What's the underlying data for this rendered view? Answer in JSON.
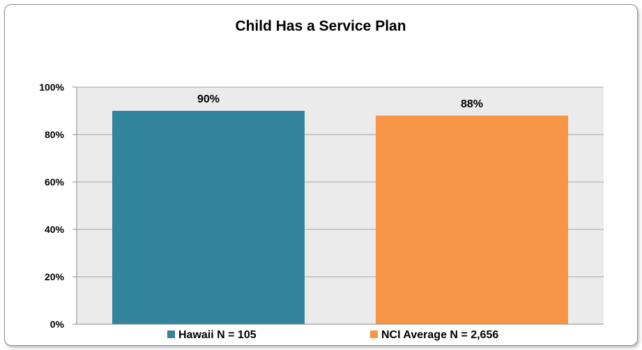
{
  "chart_data": {
    "type": "bar",
    "title": "Child Has a Service Plan",
    "categories": [
      "Hawaii N = 105",
      "NCI Average N = 2,656"
    ],
    "values": [
      90,
      88
    ],
    "data_labels": [
      "90%",
      "88%"
    ],
    "colors": [
      "#31849b",
      "#f79646"
    ],
    "ylim": [
      0,
      100
    ],
    "yticks": [
      0,
      20,
      40,
      60,
      80,
      100
    ],
    "ytick_labels": [
      "0%",
      "20%",
      "40%",
      "60%",
      "80%",
      "100%"
    ],
    "xlabel": "",
    "ylabel": "",
    "grid": true,
    "legend": {
      "position": "bottom",
      "entries": [
        "Hawaii N = 105",
        "NCI Average N = 2,656"
      ]
    }
  }
}
